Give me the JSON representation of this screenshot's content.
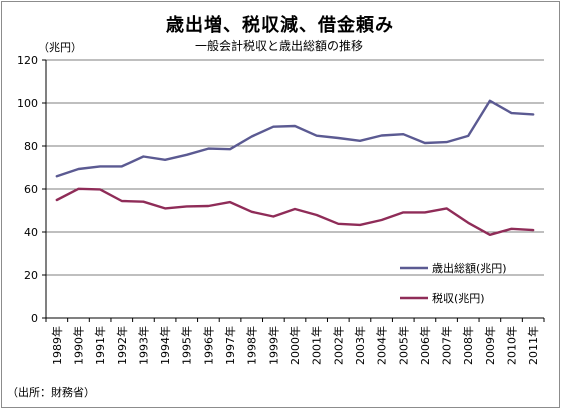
{
  "title": "歳出増、税収減、借金頼み",
  "subtitle": "一般会計税収と歳出総額の推移",
  "unit_label": "（兆円）",
  "source_note": "（出所：財務省）",
  "chart_data": {
    "type": "line",
    "title": "歳出増、税収減、借金頼み",
    "subtitle": "一般会計税収と歳出総額の推移",
    "ylabel": "（兆円）",
    "xlabel": "",
    "ylim": [
      0,
      120
    ],
    "yticks": [
      0,
      20,
      40,
      60,
      80,
      100,
      120
    ],
    "grid": "horizontal",
    "legend_position": "right",
    "categories": [
      "1989年",
      "1990年",
      "1991年",
      "1992年",
      "1993年",
      "1994年",
      "1995年",
      "1996年",
      "1997年",
      "1998年",
      "1999年",
      "2000年",
      "2001年",
      "2002年",
      "2003年",
      "2004年",
      "2005年",
      "2006年",
      "2007年",
      "2008年",
      "2009年",
      "2010年",
      "2011年"
    ],
    "series": [
      {
        "name": "歳出総額(兆円)",
        "color": "#5b5a92",
        "values": [
          65.9,
          69.3,
          70.5,
          70.5,
          75.1,
          73.6,
          75.9,
          78.8,
          78.5,
          84.4,
          89.0,
          89.3,
          84.8,
          83.7,
          82.4,
          84.9,
          85.5,
          81.4,
          81.8,
          84.7,
          101.0,
          95.3,
          94.7
        ]
      },
      {
        "name": "税収(兆円)",
        "color": "#8f2c58",
        "values": [
          54.9,
          60.1,
          59.8,
          54.4,
          54.1,
          51.0,
          51.9,
          52.1,
          53.9,
          49.4,
          47.2,
          50.7,
          47.9,
          43.8,
          43.3,
          45.6,
          49.1,
          49.1,
          51.0,
          44.3,
          38.7,
          41.5,
          40.9
        ]
      }
    ]
  }
}
